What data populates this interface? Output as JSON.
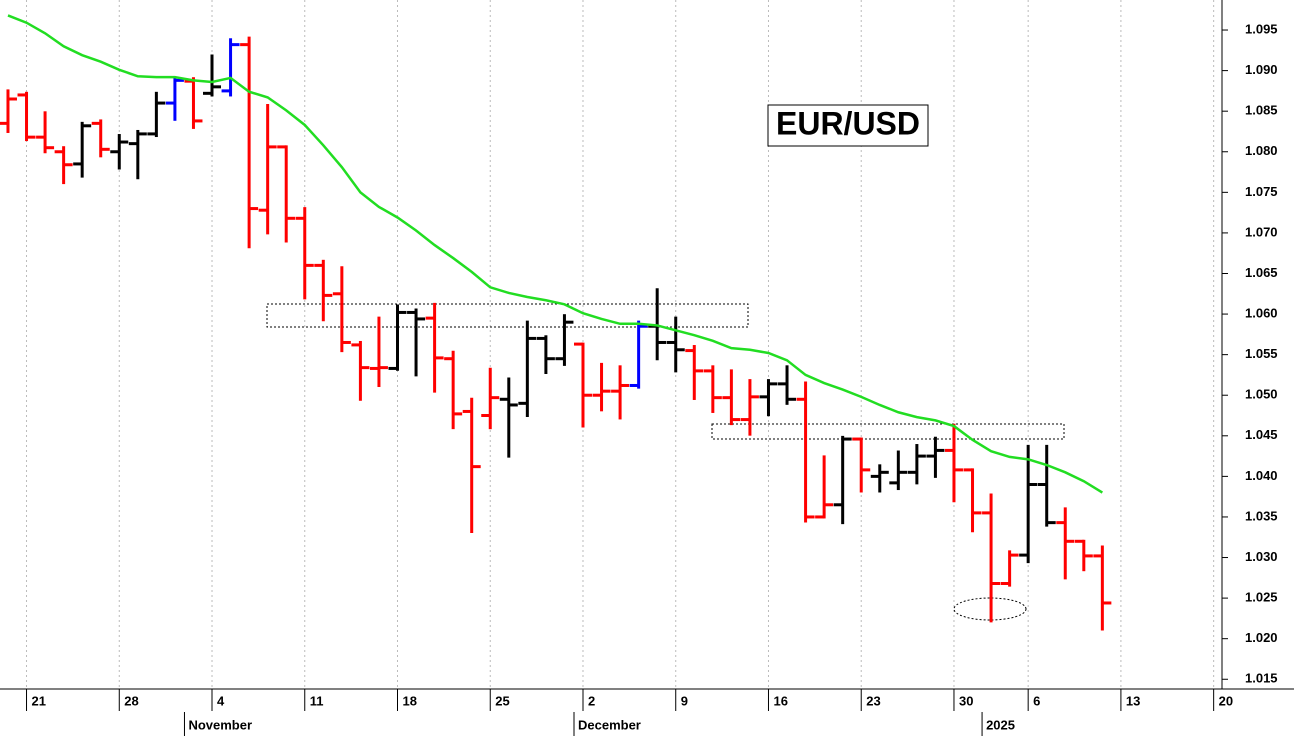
{
  "chart_data": {
    "type": "ohlc",
    "title": "EUR/USD",
    "x": [
      0,
      1,
      2,
      3,
      4,
      5,
      6,
      7,
      8,
      9,
      10,
      11,
      12,
      13,
      14,
      15,
      16,
      17,
      18,
      19,
      20,
      21,
      22,
      23,
      24,
      25,
      26,
      27,
      28,
      29,
      30,
      31,
      32,
      33,
      34,
      35,
      36,
      37,
      38,
      39,
      40,
      41,
      42,
      43,
      44,
      45,
      46,
      47,
      48,
      49,
      50,
      51,
      52,
      53,
      54,
      55,
      56,
      57,
      58,
      59
    ],
    "open": [
      1.0835,
      1.087,
      1.0818,
      1.08,
      1.0785,
      1.0835,
      1.08,
      1.081,
      1.0822,
      1.086,
      1.0887,
      1.0872,
      1.0875,
      1.0932,
      1.0728,
      1.0806,
      1.0718,
      1.066,
      1.0625,
      1.0562,
      1.0533,
      1.0533,
      1.0602,
      1.0595,
      1.0545,
      1.048,
      1.0475,
      1.0495,
      1.049,
      1.057,
      1.0545,
      1.0563,
      1.05,
      1.0505,
      1.0512,
      1.0585,
      1.0565,
      1.0555,
      1.053,
      1.0497,
      1.047,
      1.0498,
      1.0514,
      1.0495,
      1.035,
      1.0365,
      1.0446,
      1.04,
      1.0392,
      1.0405,
      1.0425,
      1.0432,
      1.0408,
      1.0355,
      1.0268,
      1.0303,
      1.039,
      1.0343,
      1.032,
      1.0302
    ],
    "high": [
      1.0875,
      1.0872,
      1.0848,
      1.0805,
      1.0835,
      1.0838,
      1.082,
      1.0825,
      1.0872,
      1.089,
      1.089,
      1.0918,
      1.0938,
      1.094,
      1.0857,
      1.0806,
      1.073,
      1.0665,
      1.0657,
      1.0565,
      1.0595,
      1.061,
      1.0605,
      1.0612,
      1.0553,
      1.0495,
      1.0532,
      1.052,
      1.059,
      1.0572,
      1.0598,
      1.0563,
      1.0538,
      1.0535,
      1.059,
      1.063,
      1.0595,
      1.056,
      1.0535,
      1.053,
      1.0518,
      1.0518,
      1.0535,
      1.0515,
      1.0424,
      1.0448,
      1.0446,
      1.0413,
      1.043,
      1.0438,
      1.0447,
      1.0463,
      1.0408,
      1.0377,
      1.0307,
      1.0437,
      1.0437,
      1.036,
      1.032,
      1.0313
    ],
    "low": [
      1.0825,
      1.0815,
      1.08,
      1.0762,
      1.077,
      1.0795,
      1.078,
      1.0768,
      1.082,
      1.084,
      1.083,
      1.087,
      1.087,
      1.0683,
      1.07,
      1.069,
      1.062,
      1.0593,
      1.0555,
      1.0495,
      1.0512,
      1.0532,
      1.0525,
      1.0505,
      1.046,
      1.0332,
      1.046,
      1.0425,
      1.0475,
      1.0528,
      1.0538,
      1.0462,
      1.0482,
      1.0472,
      1.051,
      1.0545,
      1.053,
      1.0496,
      1.048,
      1.0465,
      1.0452,
      1.0476,
      1.049,
      1.0345,
      1.035,
      1.0343,
      1.0382,
      1.0382,
      1.0385,
      1.0392,
      1.04,
      1.037,
      1.0333,
      1.0222,
      1.0266,
      1.0295,
      1.034,
      1.0275,
      1.0285,
      1.0212
    ],
    "close": [
      1.0865,
      1.0818,
      1.0805,
      1.0784,
      1.0832,
      1.0803,
      1.0812,
      1.0822,
      1.086,
      1.0888,
      1.0838,
      1.088,
      1.0932,
      1.073,
      1.0806,
      1.0718,
      1.066,
      1.0623,
      1.0565,
      1.0534,
      1.0534,
      1.0602,
      1.0594,
      1.0546,
      1.0477,
      1.0412,
      1.0497,
      1.0488,
      1.057,
      1.0545,
      1.059,
      1.05,
      1.0505,
      1.0512,
      1.0585,
      1.0565,
      1.0556,
      1.053,
      1.0497,
      1.047,
      1.0498,
      1.0514,
      1.0495,
      1.035,
      1.0365,
      1.0446,
      1.0408,
      1.0405,
      1.0405,
      1.0425,
      1.0432,
      1.0408,
      1.0355,
      1.0268,
      1.0303,
      1.039,
      1.0343,
      1.032,
      1.0302,
      1.0244
    ],
    "bar_colors": [
      "#ff0000",
      "#ff0000",
      "#ff0000",
      "#ff0000",
      "#000000",
      "#ff0000",
      "#000000",
      "#000000",
      "#000000",
      "#0000ff",
      "#ff0000",
      "#000000",
      "#0000ff",
      "#ff0000",
      "#ff0000",
      "#ff0000",
      "#ff0000",
      "#ff0000",
      "#ff0000",
      "#ff0000",
      "#ff0000",
      "#000000",
      "#000000",
      "#ff0000",
      "#ff0000",
      "#ff0000",
      "#ff0000",
      "#000000",
      "#000000",
      "#000000",
      "#000000",
      "#ff0000",
      "#ff0000",
      "#ff0000",
      "#0000ff",
      "#000000",
      "#000000",
      "#ff0000",
      "#ff0000",
      "#ff0000",
      "#ff0000",
      "#000000",
      "#000000",
      "#ff0000",
      "#ff0000",
      "#000000",
      "#ff0000",
      "#000000",
      "#000000",
      "#000000",
      "#000000",
      "#ff0000",
      "#ff0000",
      "#ff0000",
      "#ff0000",
      "#000000",
      "#000000",
      "#ff0000",
      "#ff0000",
      "#ff0000"
    ],
    "moving_average": {
      "color": "#22dd22",
      "values": [
        1.0968,
        1.0959,
        1.0946,
        1.093,
        1.0919,
        1.0911,
        1.0901,
        1.0893,
        1.0892,
        1.0892,
        1.0888,
        1.0886,
        1.0891,
        1.0874,
        1.0867,
        1.0851,
        1.0833,
        1.0808,
        1.0781,
        1.075,
        1.0732,
        1.0719,
        1.0703,
        1.0685,
        1.0669,
        1.0652,
        1.0633,
        1.0626,
        1.0621,
        1.0617,
        1.0612,
        1.0601,
        1.0594,
        1.0588,
        1.0588,
        1.0586,
        1.058,
        1.0574,
        1.0567,
        1.0558,
        1.0556,
        1.0552,
        1.0543,
        1.0525,
        1.0515,
        1.0507,
        1.0498,
        1.0488,
        1.0479,
        1.0473,
        1.0469,
        1.0462,
        1.0445,
        1.0431,
        1.0424,
        1.0421,
        1.0414,
        1.0405,
        1.0394,
        1.038
      ]
    },
    "xlim": [
      -0.43,
      65.45
    ],
    "xticks": [
      {
        "value": 1,
        "label": "21"
      },
      {
        "value": 6,
        "label": "28"
      },
      {
        "value": 11,
        "label": "4"
      },
      {
        "value": 16,
        "label": "11"
      },
      {
        "value": 21,
        "label": "18"
      },
      {
        "value": 26,
        "label": "25"
      },
      {
        "value": 31,
        "label": "2"
      },
      {
        "value": 36,
        "label": "9"
      },
      {
        "value": 41,
        "label": "16"
      },
      {
        "value": 46,
        "label": "23"
      },
      {
        "value": 51,
        "label": "30"
      },
      {
        "value": 55,
        "label": "6"
      },
      {
        "value": 60,
        "label": "13"
      },
      {
        "value": 65,
        "label": "20"
      }
    ],
    "month_labels": [
      {
        "value": 10,
        "label": "November"
      },
      {
        "value": 31,
        "label": "December"
      },
      {
        "value": 53,
        "label": "2025"
      }
    ],
    "ylim": [
      1.0138,
      1.0987
    ],
    "yticks": [
      1.015,
      {
        "value": 1.02,
        "label": "1.020"
      },
      1.025,
      {
        "value": 1.03,
        "label": "1.030"
      },
      1.035,
      {
        "value": 1.04,
        "label": "1.040"
      },
      1.045,
      {
        "value": 1.05,
        "label": "1.050"
      },
      1.055,
      {
        "value": 1.06,
        "label": "1.060"
      },
      1.065,
      {
        "value": 1.07,
        "label": "1.070"
      },
      1.075,
      {
        "value": 1.08,
        "label": "1.080"
      },
      1.085,
      {
        "value": 1.09,
        "label": "1.090"
      },
      1.095
    ],
    "grid": true
  }
}
